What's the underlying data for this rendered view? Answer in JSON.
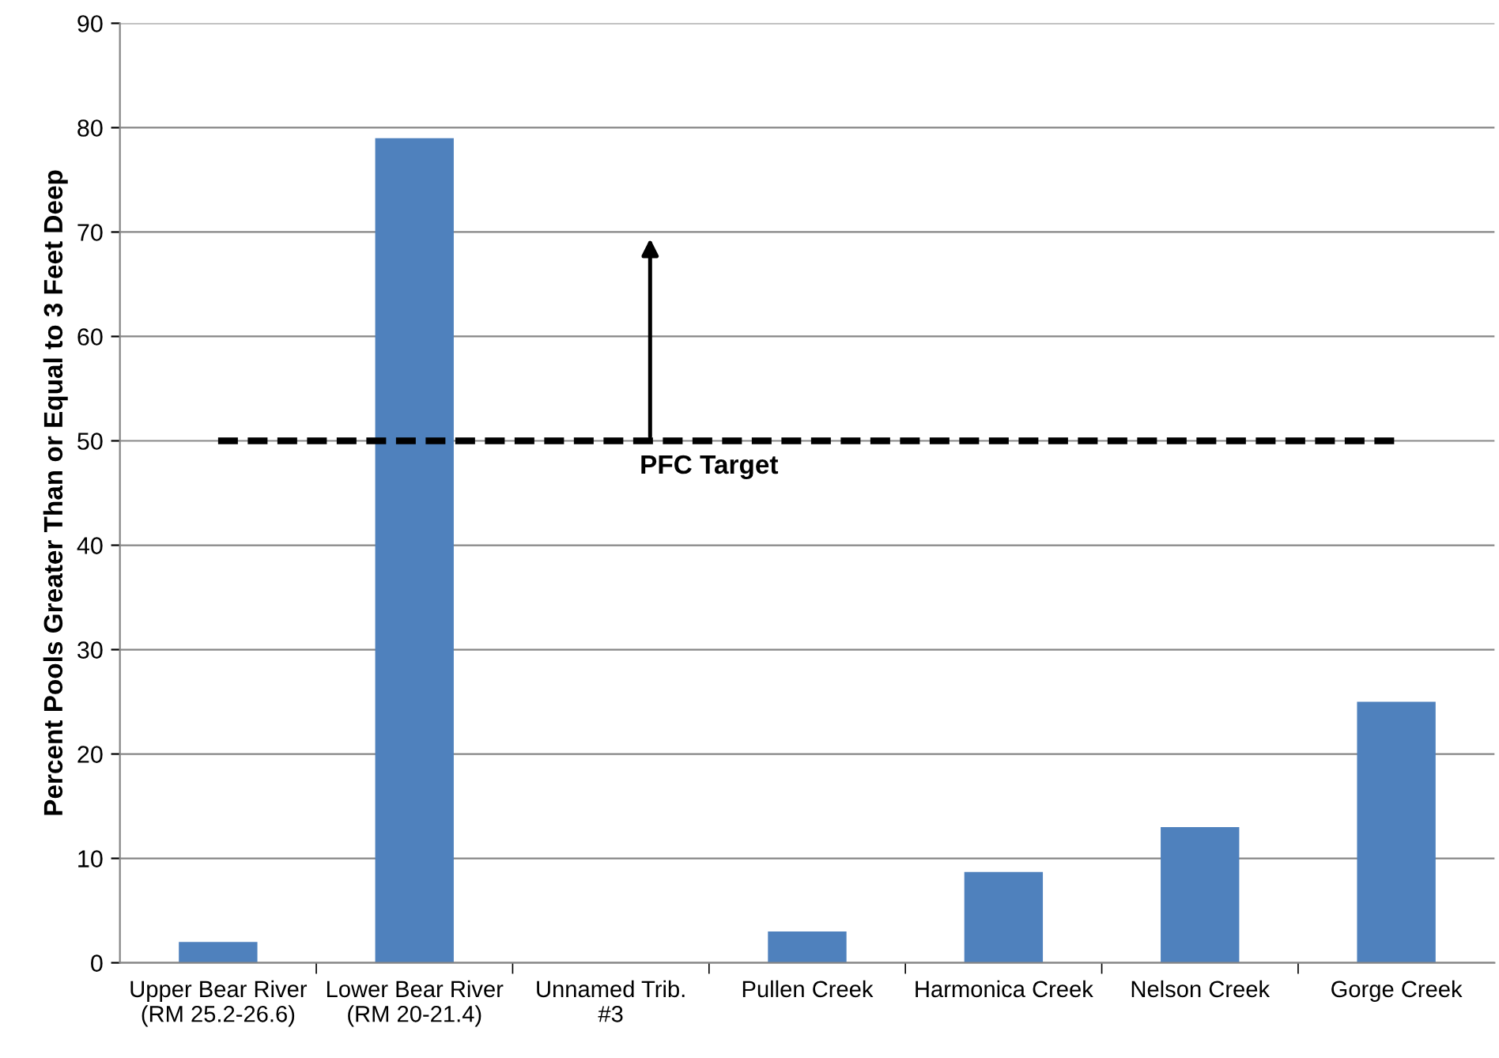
{
  "chart_data": {
    "type": "bar",
    "ylabel": "Percent Pools Greater Than or Equal to 3 Feet Deep",
    "categories": [
      "Upper Bear River\n(RM 25.2-26.6)",
      "Lower Bear River\n(RM 20-21.4)",
      "Unnamed Trib.\n#3",
      "Pullen Creek",
      "Harmonica Creek",
      "Nelson Creek",
      "Gorge Creek"
    ],
    "values": [
      2,
      79,
      0,
      3,
      8.7,
      13,
      25
    ],
    "color": "#4f81bd",
    "ylim": [
      0,
      90
    ],
    "yticks": [
      0,
      10,
      20,
      30,
      40,
      50,
      60,
      70,
      80,
      90
    ],
    "grid": "y",
    "ref_lines": [
      {
        "axis": "y",
        "value": 50,
        "label": "PFC Target",
        "color": "#000000",
        "line_style": "dashed"
      }
    ]
  }
}
